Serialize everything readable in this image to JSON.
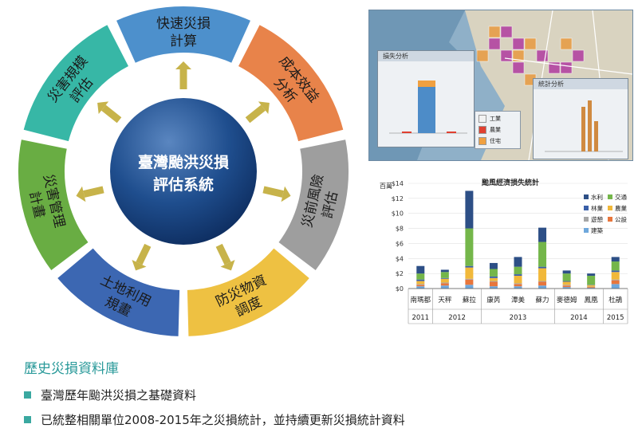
{
  "diagram": {
    "center": [
      "臺灣颱洪災損",
      "評估系統"
    ],
    "segments": [
      {
        "lines": [
          "快速災損",
          "計算"
        ],
        "color": "#4d90cc"
      },
      {
        "lines": [
          "成本效益",
          "分析"
        ],
        "color": "#e8834a"
      },
      {
        "lines": [
          "災前風險",
          "評估"
        ],
        "color": "#9e9e9e"
      },
      {
        "lines": [
          "防災物資",
          "調度"
        ],
        "color": "#eec142"
      },
      {
        "lines": [
          "土地利用",
          "規畫"
        ],
        "color": "#3c67b2"
      },
      {
        "lines": [
          "災害管理",
          "計畫"
        ],
        "color": "#69ad43"
      },
      {
        "lines": [
          "災害規模",
          "評估"
        ],
        "color": "#37b7a6"
      }
    ],
    "arrow_color": "#c7b34a"
  },
  "gis_panel": {
    "window1_title": "損失分析",
    "window2_title": "統計分析",
    "legend": [
      {
        "label": "工業",
        "color": "#f2f2f2"
      },
      {
        "label": "農業",
        "color": "#e04030"
      },
      {
        "label": "住宅",
        "color": "#f0a040"
      }
    ]
  },
  "chart_data": {
    "type": "bar",
    "title": "颱風經濟損失統計",
    "ylabel": "百萬",
    "yticks": [
      "$0",
      "$2",
      "$4",
      "$6",
      "$8",
      "$10",
      "$12",
      "$14"
    ],
    "ylim": [
      0,
      14
    ],
    "categories": [
      "南瑪都",
      "天秤",
      "蘇拉",
      "康芮",
      "潭美",
      "蘇力",
      "麥德姆",
      "鳳凰",
      "杜鵑"
    ],
    "year_groups": [
      {
        "year": "2011",
        "count": 1
      },
      {
        "year": "2012",
        "count": 2
      },
      {
        "year": "2013",
        "count": 3
      },
      {
        "year": "2014",
        "count": 2
      },
      {
        "year": "2015",
        "count": 1
      }
    ],
    "series": [
      {
        "name": "建築",
        "color": "#6fa8dc",
        "values": [
          0.3,
          0.4,
          0.5,
          0.3,
          0.3,
          0.4,
          0.2,
          0.1,
          0.6
        ]
      },
      {
        "name": "公設",
        "color": "#e8763b",
        "values": [
          0.2,
          0.3,
          0.7,
          0.6,
          0.3,
          0.5,
          0.2,
          0.1,
          0.5
        ]
      },
      {
        "name": "遊憩",
        "color": "#a6a6a6",
        "values": [
          0.1,
          0.1,
          0.1,
          0.1,
          0.1,
          0.1,
          0.1,
          0.05,
          0.1
        ]
      },
      {
        "name": "農業",
        "color": "#f1b83a",
        "values": [
          0.4,
          0.5,
          1.5,
          0.4,
          1.0,
          1.7,
          0.4,
          0.2,
          1.0
        ]
      },
      {
        "name": "林業",
        "color": "#3a5fa8",
        "values": [
          0.2,
          0.1,
          0.2,
          0.2,
          0.2,
          0.2,
          0.1,
          0.05,
          0.2
        ]
      },
      {
        "name": "交通",
        "color": "#74b64a",
        "values": [
          0.8,
          0.8,
          5.0,
          1.0,
          1.0,
          3.3,
          1.0,
          1.2,
          1.2
        ]
      },
      {
        "name": "水利",
        "color": "#2d4f86",
        "values": [
          1.0,
          0.3,
          5.0,
          0.8,
          1.3,
          1.9,
          0.4,
          0.3,
          0.6
        ]
      }
    ],
    "legend_order": [
      "水利",
      "交通",
      "林業",
      "農業",
      "遊憩",
      "公設",
      "建築"
    ]
  },
  "notes": {
    "heading": "歷史災損資料庫",
    "bullets": [
      "臺灣歷年颱洪災損之基礎資料",
      "已統整相關單位2008-2015年之災損統計，並持續更新災損統計資料"
    ]
  }
}
